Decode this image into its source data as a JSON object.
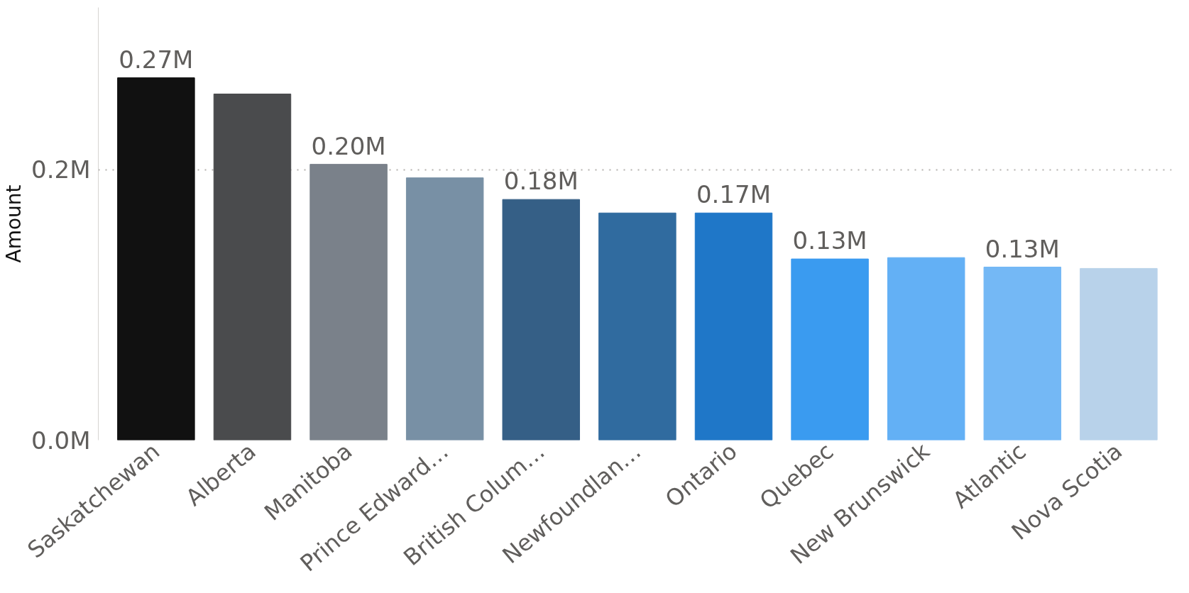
{
  "chart_data": {
    "type": "bar",
    "ylabel": "Amount",
    "categories": [
      "Saskatchewan",
      "Alberta",
      "Manitoba",
      "Prince Edward…",
      "British Colum…",
      "Newfoundlan…",
      "Ontario",
      "Quebec",
      "New Brunswick",
      "Atlantic",
      "Nova Scotia"
    ],
    "values": [
      0.268,
      0.256,
      0.204,
      0.194,
      0.178,
      0.168,
      0.168,
      0.134,
      0.135,
      0.128,
      0.127
    ],
    "colors": [
      "#111111",
      "#4a4b4d",
      "#7a818a",
      "#7890a5",
      "#355f86",
      "#306b9f",
      "#1f77c8",
      "#3a9bf0",
      "#63b0f5",
      "#74b8f5",
      "#b8d2ea"
    ],
    "value_labels": [
      "0.27M",
      null,
      "0.20M",
      null,
      "0.18M",
      null,
      "0.17M",
      "0.13M",
      null,
      "0.13M",
      null
    ],
    "ylim": [
      0,
      0.32
    ],
    "yticks": [
      {
        "value": 0,
        "label": "0.0M"
      },
      {
        "value": 0.2,
        "label": "0.2M"
      }
    ],
    "grid": "y"
  }
}
